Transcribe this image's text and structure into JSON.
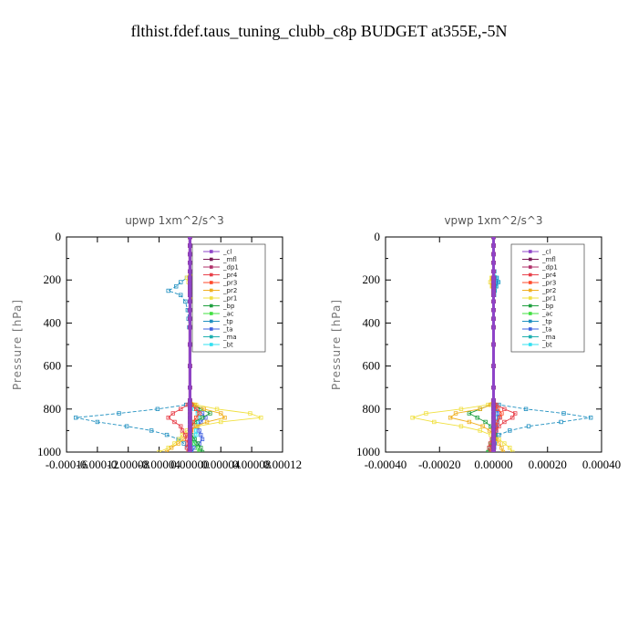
{
  "figure": {
    "title": "flthist.fdef.taus_tuning_clubb_c8p  BUDGET at355E,-5N"
  },
  "colors": {
    "_cl": "#8e44c8",
    "_mfl": "#7a1a58",
    "_dp1": "#b0306a",
    "_pr4": "#e8404a",
    "_pr3": "#ff4a2a",
    "_pr2": "#f0b020",
    "_pr1": "#f0e040",
    "_bp": "#20a040",
    "_ac": "#40e040",
    "_tp": "#2090c0",
    "_ta": "#4060e0",
    "_ma": "#20b0b0",
    "_bt": "#30e0f0"
  },
  "chart_data": [
    {
      "type": "line",
      "title": "upwp   1xm^2/s^3",
      "ylabel": "Pressure [hPa]",
      "xlim": [
        -0.00016,
        0.00012
      ],
      "ylim": [
        1000,
        0
      ],
      "xticks": [
        "-0.00016",
        "-0.00012",
        "-0.00008",
        "-0.00004",
        "0.00000",
        "0.00004",
        "0.00008",
        "0.00012"
      ],
      "yticks": [
        "0",
        "200",
        "400",
        "600",
        "800",
        "1000"
      ],
      "legend": [
        "_cl",
        "_mfl",
        "_dp1",
        "_pr4",
        "_pr3",
        "_pr2",
        "_pr1",
        "_bp",
        "_ac",
        "_tp",
        "_ta",
        "_ma",
        "_bt"
      ],
      "legend_position": "top-right",
      "y": [
        0,
        40,
        80,
        120,
        160,
        190,
        210,
        230,
        250,
        270,
        300,
        340,
        380,
        420,
        500,
        600,
        700,
        760,
        780,
        800,
        820,
        840,
        860,
        880,
        900,
        920,
        940,
        960,
        980,
        1000
      ],
      "series": [
        {
          "name": "_cl",
          "values": [
            0,
            0,
            0,
            0,
            0,
            0,
            0,
            0,
            0,
            0,
            0,
            0,
            0,
            0,
            0,
            0,
            0,
            0,
            0,
            0,
            0,
            0,
            0,
            0,
            0,
            0,
            0,
            0,
            0,
            0
          ]
        },
        {
          "name": "_mfl",
          "values": [
            0,
            0,
            0,
            0,
            0,
            0,
            0,
            0,
            0,
            0,
            0,
            0,
            0,
            0,
            0,
            0,
            0,
            0,
            0,
            0,
            0,
            0,
            0,
            0,
            0,
            0,
            0,
            0,
            0,
            0
          ]
        },
        {
          "name": "_dp1",
          "values": [
            0,
            0,
            0,
            0,
            0,
            0,
            0,
            0,
            0,
            0,
            0,
            0,
            0,
            0,
            0,
            0,
            0,
            0,
            0,
            0,
            0,
            0,
            0,
            0,
            0,
            0,
            0,
            0,
            0,
            0
          ]
        },
        {
          "name": "_pr4",
          "values": [
            0,
            0,
            0,
            0,
            0,
            0,
            0,
            0,
            0,
            0,
            0,
            0,
            0,
            0,
            0,
            0,
            0,
            0,
            -3e-06,
            -1.2e-05,
            -2.2e-05,
            -2.8e-05,
            -2e-05,
            -1.2e-05,
            -1e-05,
            -6e-06,
            -4e-06,
            -3e-06,
            -4e-06,
            -2e-06
          ]
        },
        {
          "name": "_pr3",
          "values": [
            0,
            0,
            0,
            0,
            0,
            0,
            0,
            0,
            0,
            0,
            0,
            0,
            0,
            0,
            0,
            0,
            0,
            0,
            2e-06,
            8e-06,
            1.2e-05,
            8e-06,
            4e-06,
            2e-06,
            1e-06,
            0,
            0,
            0,
            0,
            0
          ]
        },
        {
          "name": "_pr2",
          "values": [
            0,
            0,
            0,
            0,
            0,
            4e-06,
            8e-06,
            6e-06,
            7e-06,
            4e-06,
            2e-06,
            0,
            0,
            0,
            0,
            0,
            0,
            0,
            6e-06,
            1.8e-05,
            4e-05,
            4.5e-05,
            2.2e-05,
            8e-06,
            2e-06,
            -3e-06,
            -8e-06,
            -1.5e-05,
            -2.4e-05,
            -3e-05
          ]
        },
        {
          "name": "_pr1",
          "values": [
            0,
            0,
            0,
            0,
            0,
            -4e-06,
            -2e-06,
            3e-06,
            6e-06,
            3e-06,
            1e-06,
            0,
            0,
            0,
            0,
            0,
            0,
            0,
            8e-06,
            3.5e-05,
            7.8e-05,
            9.2e-05,
            4e-05,
            1e-05,
            -4e-06,
            -1e-05,
            -1.4e-05,
            -2e-05,
            -2.8e-05,
            -4e-05
          ]
        },
        {
          "name": "_bp",
          "values": [
            0,
            0,
            0,
            0,
            0,
            0,
            0,
            0,
            0,
            0,
            0,
            0,
            0,
            0,
            0,
            0,
            0,
            0,
            4e-06,
            1.4e-05,
            2.6e-05,
            1.6e-05,
            6e-06,
            2e-06,
            0,
            2e-06,
            6e-06,
            1e-05,
            1.4e-05,
            1.6e-05
          ]
        },
        {
          "name": "_ac",
          "values": [
            0,
            0,
            0,
            0,
            0,
            0,
            0,
            0,
            0,
            0,
            0,
            0,
            0,
            0,
            0,
            0,
            0,
            0,
            0,
            0,
            0,
            0,
            0,
            0,
            0,
            0,
            2e-06,
            6e-06,
            1e-05,
            1.2e-05
          ]
        },
        {
          "name": "_tp",
          "values": [
            0,
            0,
            0,
            0,
            0,
            -4e-06,
            -1.2e-05,
            -1.8e-05,
            -2.8e-05,
            -1.2e-05,
            -6e-06,
            -3e-06,
            -2e-06,
            -1e-06,
            0,
            0,
            0,
            0,
            -5e-06,
            -4.2e-05,
            -9.2e-05,
            -0.000148,
            -0.00012,
            -8.2e-05,
            -5e-05,
            -3e-05,
            -1.5e-05,
            -8e-06,
            -4e-06,
            -2e-06
          ]
        },
        {
          "name": "_ta",
          "values": [
            0,
            0,
            0,
            0,
            1e-06,
            6e-06,
            1.2e-05,
            6e-06,
            2e-06,
            2e-06,
            1e-06,
            0,
            0,
            0,
            0,
            0,
            0,
            0,
            2e-06,
            8e-06,
            1.6e-05,
            2e-05,
            1.4e-05,
            1e-05,
            1.2e-05,
            1.4e-05,
            1.6e-05,
            1.2e-05,
            6e-06,
            2e-06
          ]
        },
        {
          "name": "_ma",
          "values": [
            0,
            0,
            0,
            0,
            0,
            0,
            0,
            0,
            0,
            0,
            0,
            0,
            0,
            0,
            0,
            0,
            0,
            0,
            0,
            0,
            0,
            0,
            0,
            0,
            0,
            0,
            0,
            0,
            0,
            0
          ]
        },
        {
          "name": "_bt",
          "values": [
            0,
            0,
            0,
            0,
            1e-06,
            4e-06,
            8e-06,
            6e-06,
            4e-06,
            2e-06,
            1e-06,
            0,
            0,
            0,
            0,
            0,
            0,
            0,
            2e-06,
            6e-06,
            1e-05,
            1.2e-05,
            1e-05,
            8e-06,
            8e-06,
            8e-06,
            6e-06,
            4e-06,
            2e-06,
            1e-06
          ]
        }
      ]
    },
    {
      "type": "line",
      "title": "vpwp   1xm^2/s^3",
      "ylabel": "Pressure [hPa]",
      "xlim": [
        -0.0004,
        0.0004
      ],
      "ylim": [
        1000,
        0
      ],
      "xticks": [
        "-0.00040",
        "-0.00020",
        "0.00000",
        "0.00020",
        "0.00040"
      ],
      "yticks": [
        "0",
        "200",
        "400",
        "600",
        "800",
        "1000"
      ],
      "legend": [
        "_cl",
        "_mfl",
        "_dp1",
        "_pr4",
        "_pr3",
        "_pr2",
        "_pr1",
        "_bp",
        "_ac",
        "_tp",
        "_ta",
        "_ma",
        "_bt"
      ],
      "legend_position": "top-right",
      "y": [
        0,
        40,
        80,
        120,
        160,
        190,
        210,
        230,
        250,
        270,
        300,
        340,
        380,
        420,
        500,
        600,
        700,
        760,
        780,
        800,
        820,
        840,
        860,
        880,
        900,
        920,
        940,
        960,
        980,
        1000
      ],
      "series": [
        {
          "name": "_cl",
          "values": [
            0,
            0,
            0,
            0,
            0,
            0,
            0,
            0,
            0,
            0,
            0,
            0,
            0,
            0,
            0,
            0,
            0,
            0,
            0,
            0,
            0,
            0,
            0,
            0,
            0,
            0,
            0,
            0,
            0,
            0
          ]
        },
        {
          "name": "_mfl",
          "values": [
            0,
            0,
            0,
            0,
            0,
            0,
            0,
            0,
            0,
            0,
            0,
            0,
            0,
            0,
            0,
            0,
            0,
            0,
            0,
            0,
            0,
            0,
            0,
            0,
            0,
            0,
            0,
            0,
            0,
            0
          ]
        },
        {
          "name": "_dp1",
          "values": [
            0,
            0,
            0,
            0,
            0,
            0,
            0,
            0,
            0,
            0,
            0,
            0,
            0,
            0,
            0,
            0,
            0,
            0,
            0,
            0,
            0,
            0,
            0,
            0,
            0,
            0,
            0,
            0,
            0,
            0
          ]
        },
        {
          "name": "_pr4",
          "values": [
            0,
            0,
            0,
            0,
            0,
            0,
            0,
            0,
            0,
            0,
            0,
            0,
            0,
            0,
            0,
            0,
            0,
            0,
            1e-05,
            4e-05,
            8e-05,
            7e-05,
            4e-05,
            2e-05,
            1e-05,
            2e-06,
            -6e-06,
            -1.2e-05,
            -1.6e-05,
            -1e-05
          ]
        },
        {
          "name": "_pr3",
          "values": [
            0,
            0,
            0,
            0,
            0,
            0,
            0,
            0,
            0,
            0,
            0,
            0,
            0,
            0,
            0,
            0,
            0,
            0,
            4e-06,
            1.6e-05,
            3e-05,
            2.4e-05,
            1.2e-05,
            6e-06,
            2e-06,
            0,
            0,
            0,
            0,
            0
          ]
        },
        {
          "name": "_pr2",
          "values": [
            0,
            0,
            0,
            0,
            0,
            -4e-06,
            -6e-06,
            -3e-06,
            0,
            0,
            0,
            0,
            0,
            0,
            0,
            0,
            0,
            0,
            -1e-05,
            -5e-05,
            -0.00014,
            -0.00016,
            -9e-05,
            -4e-05,
            -1.5e-05,
            0,
            1e-05,
            2e-05,
            3e-05,
            3.5e-05
          ]
        },
        {
          "name": "_pr1",
          "values": [
            0,
            0,
            0,
            0,
            0,
            -8e-06,
            -1.2e-05,
            -6e-06,
            0,
            0,
            0,
            0,
            0,
            0,
            0,
            0,
            0,
            0,
            -2e-05,
            -0.00012,
            -0.00025,
            -0.0003,
            -0.00022,
            -0.00012,
            -5e-05,
            -1e-05,
            2e-05,
            4e-05,
            6e-05,
            7e-05
          ]
        },
        {
          "name": "_bp",
          "values": [
            0,
            0,
            0,
            0,
            0,
            0,
            0,
            0,
            0,
            0,
            0,
            0,
            0,
            0,
            0,
            0,
            0,
            0,
            -1e-05,
            -5e-05,
            -9e-05,
            -6e-05,
            -3e-05,
            -1e-05,
            0,
            5e-06,
            4e-06,
            -4e-06,
            -1.6e-05,
            -2e-05
          ]
        },
        {
          "name": "_ac",
          "values": [
            0,
            0,
            0,
            0,
            0,
            0,
            0,
            0,
            0,
            0,
            0,
            0,
            0,
            0,
            0,
            0,
            0,
            0,
            0,
            0,
            0,
            0,
            0,
            0,
            0,
            0,
            -4e-06,
            -1e-05,
            -1.6e-05,
            -1.8e-05
          ]
        },
        {
          "name": "_tp",
          "values": [
            0,
            0,
            0,
            0,
            3e-06,
            1.2e-05,
            1.8e-05,
            1e-05,
            4e-06,
            2e-06,
            0,
            0,
            0,
            0,
            0,
            0,
            0,
            0,
            2e-05,
            0.00012,
            0.00026,
            0.00036,
            0.00025,
            0.00013,
            6e-05,
            2e-05,
            0,
            -1e-05,
            -1.5e-05,
            -1e-05
          ]
        },
        {
          "name": "_ta",
          "values": [
            0,
            0,
            0,
            0,
            0,
            4e-06,
            8e-06,
            4e-06,
            0,
            0,
            0,
            0,
            0,
            0,
            0,
            0,
            0,
            0,
            4e-06,
            1e-05,
            1.8e-05,
            2e-05,
            1.4e-05,
            1e-05,
            8e-06,
            8e-06,
            6e-06,
            4e-06,
            2e-06,
            1e-06
          ]
        },
        {
          "name": "_ma",
          "values": [
            0,
            0,
            0,
            0,
            0,
            0,
            0,
            0,
            0,
            0,
            0,
            0,
            0,
            0,
            0,
            0,
            0,
            0,
            0,
            0,
            0,
            0,
            0,
            0,
            0,
            0,
            0,
            0,
            0,
            0
          ]
        },
        {
          "name": "_bt",
          "values": [
            0,
            0,
            0,
            0,
            2e-06,
            1e-05,
            1.6e-05,
            8e-06,
            4e-06,
            2e-06,
            0,
            0,
            0,
            0,
            0,
            0,
            0,
            0,
            4e-06,
            8e-06,
            1.2e-05,
            1.4e-05,
            1.2e-05,
            1e-05,
            8e-06,
            6e-06,
            4e-06,
            3e-06,
            2e-06,
            1e-06
          ]
        }
      ]
    }
  ]
}
